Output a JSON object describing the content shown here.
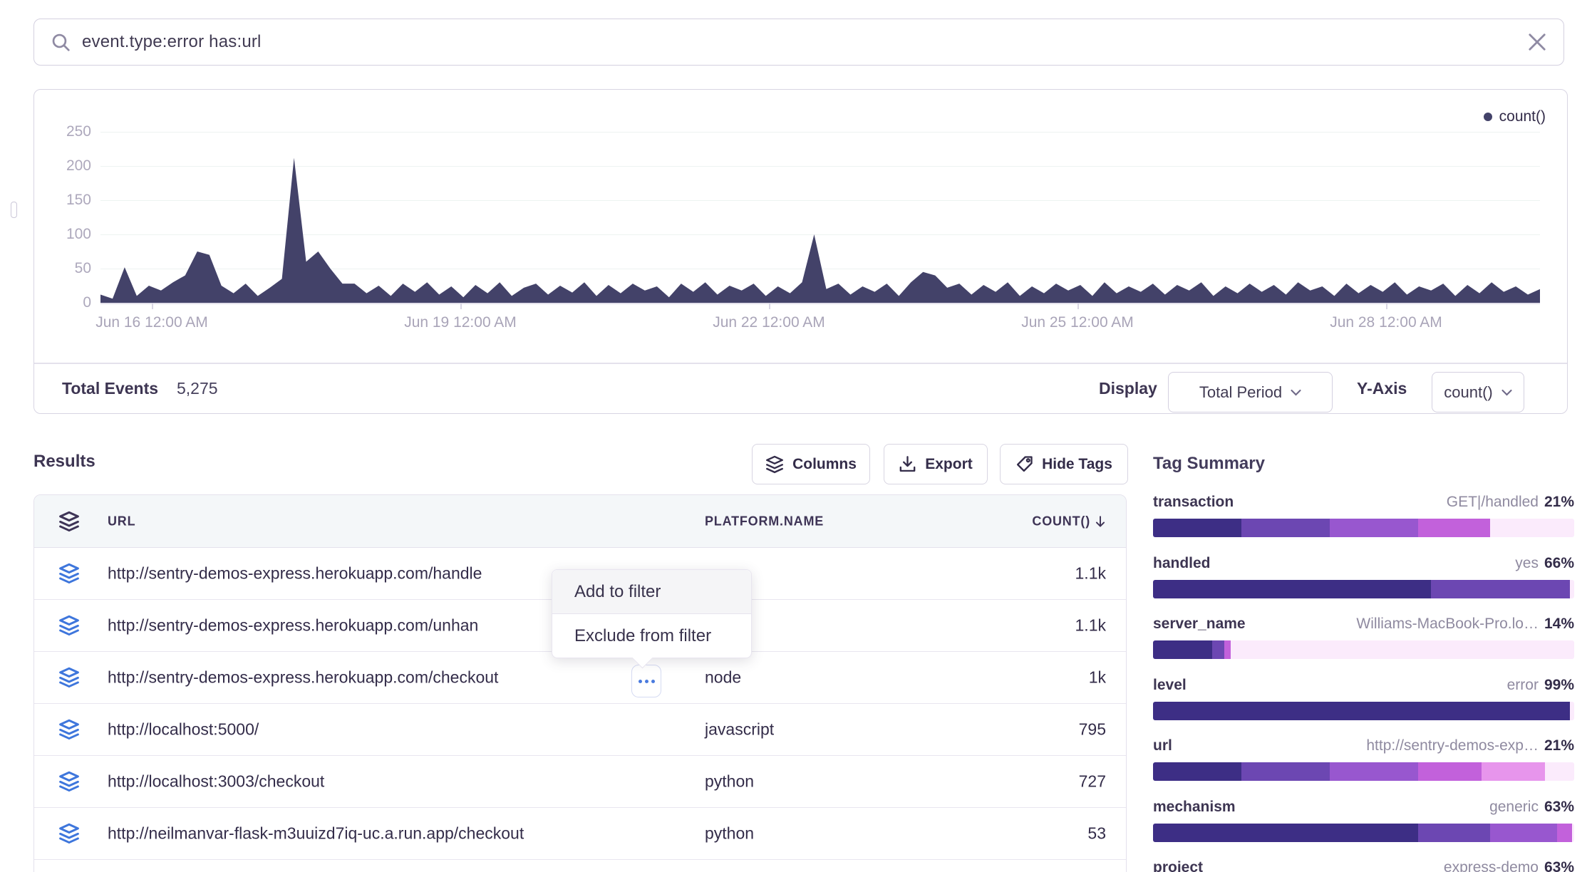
{
  "search": {
    "query": "event.type:error has:url"
  },
  "chart": {
    "legend_label": "count()",
    "series_color": "#434269",
    "y_ticks": [
      "250",
      "200",
      "150",
      "100",
      "50",
      "0"
    ],
    "x_ticks": [
      "Jun 16 12:00 AM",
      "Jun 19 12:00 AM",
      "Jun 22 12:00 AM",
      "Jun 25 12:00 AM",
      "Jun 28 12:00 AM"
    ],
    "footer": {
      "total_label": "Total Events",
      "total_value": "5,275",
      "display_label": "Display",
      "display_value": "Total Period",
      "yaxis_label": "Y-Axis",
      "yaxis_value": "count()"
    }
  },
  "chart_data": {
    "type": "area",
    "title": "",
    "legend": [
      "count()"
    ],
    "legend_position": "top-right",
    "grid": true,
    "ylim": [
      0,
      250
    ],
    "x_ticks": [
      "Jun 16 12:00 AM",
      "Jun 19 12:00 AM",
      "Jun 22 12:00 AM",
      "Jun 25 12:00 AM",
      "Jun 28 12:00 AM"
    ],
    "x_range_note": "approx Jun 15 - Jun 29, evenly sampled",
    "total_events": 5275,
    "peak_value": 212,
    "values": [
      12,
      6,
      52,
      10,
      25,
      18,
      30,
      40,
      75,
      70,
      25,
      14,
      28,
      10,
      22,
      35,
      212,
      60,
      75,
      50,
      28,
      28,
      14,
      25,
      10,
      28,
      16,
      30,
      12,
      24,
      8,
      26,
      14,
      30,
      10,
      22,
      28,
      12,
      25,
      15,
      30,
      10,
      26,
      14,
      28,
      18,
      24,
      8,
      28,
      16,
      30,
      12,
      25,
      18,
      28,
      10,
      24,
      14,
      30,
      100,
      20,
      28,
      12,
      24,
      16,
      28,
      10,
      30,
      45,
      40,
      22,
      28,
      12,
      26,
      16,
      30,
      10,
      24,
      14,
      28,
      18,
      26,
      10,
      30,
      14,
      24,
      16,
      28,
      12,
      26,
      18,
      30,
      10,
      24,
      14,
      28,
      16,
      26,
      12,
      30,
      18,
      24,
      10,
      28,
      14,
      26,
      16,
      30,
      12,
      24,
      18,
      28,
      10,
      26,
      14,
      30,
      16,
      24,
      12,
      20
    ]
  },
  "results": {
    "title": "Results",
    "buttons": [
      {
        "label": "Columns"
      },
      {
        "label": "Export"
      },
      {
        "label": "Hide Tags"
      }
    ]
  },
  "table": {
    "headers": [
      "URL",
      "PLATFORM.NAME",
      "COUNT()"
    ],
    "sort_column": "COUNT()",
    "sort_direction": "desc",
    "rows": [
      {
        "url": "http://sentry-demos-express.herokuapp.com/handle",
        "platform": "",
        "count": "1.1k"
      },
      {
        "url": "http://sentry-demos-express.herokuapp.com/unhan",
        "platform": "",
        "count": "1.1k"
      },
      {
        "url": "http://sentry-demos-express.herokuapp.com/checkout",
        "platform": "node",
        "count": "1k",
        "has_menu_button": true
      },
      {
        "url": "http://localhost:5000/",
        "platform": "javascript",
        "count": "795"
      },
      {
        "url": "http://localhost:3003/checkout",
        "platform": "python",
        "count": "727"
      },
      {
        "url": "http://neilmanvar-flask-m3uuizd7iq-uc.a.run.app/checkout",
        "platform": "python",
        "count": "53"
      }
    ]
  },
  "context_menu": {
    "items": [
      "Add to filter",
      "Exclude from filter"
    ]
  },
  "tag_summary": {
    "title": "Tag Summary",
    "tags": [
      {
        "name": "transaction",
        "value": "GET|/handled",
        "percent": "21%",
        "segments": [
          {
            "color": "#3D2E85",
            "pct": 21
          },
          {
            "color": "#6C47B2",
            "pct": 21
          },
          {
            "color": "#9857CF",
            "pct": 21
          },
          {
            "color": "#C261DB",
            "pct": 17
          }
        ]
      },
      {
        "name": "handled",
        "value": "yes",
        "percent": "66%",
        "segments": [
          {
            "color": "#3D2E85",
            "pct": 66
          },
          {
            "color": "#6C47B2",
            "pct": 33
          }
        ]
      },
      {
        "name": "server_name",
        "value": "Williams-MacBook-Pro.lo…",
        "percent": "14%",
        "segments": [
          {
            "color": "#3D2E85",
            "pct": 14
          },
          {
            "color": "#6C47B2",
            "pct": 3
          },
          {
            "color": "#C261DB",
            "pct": 1.5
          }
        ]
      },
      {
        "name": "level",
        "value": "error",
        "percent": "99%",
        "segments": [
          {
            "color": "#3D2E85",
            "pct": 99
          }
        ]
      },
      {
        "name": "url",
        "value": "http://sentry-demos-exp…",
        "percent": "21%",
        "segments": [
          {
            "color": "#3D2E85",
            "pct": 21
          },
          {
            "color": "#6C47B2",
            "pct": 21
          },
          {
            "color": "#9857CF",
            "pct": 21
          },
          {
            "color": "#C261DB",
            "pct": 15
          },
          {
            "color": "#E795EC",
            "pct": 15
          }
        ]
      },
      {
        "name": "mechanism",
        "value": "generic",
        "percent": "63%",
        "segments": [
          {
            "color": "#3D2E85",
            "pct": 63
          },
          {
            "color": "#6C47B2",
            "pct": 17
          },
          {
            "color": "#9857CF",
            "pct": 16
          },
          {
            "color": "#C261DB",
            "pct": 3.5
          }
        ]
      },
      {
        "name": "project",
        "value": "express-demo",
        "percent": "63%",
        "segments": []
      }
    ]
  }
}
